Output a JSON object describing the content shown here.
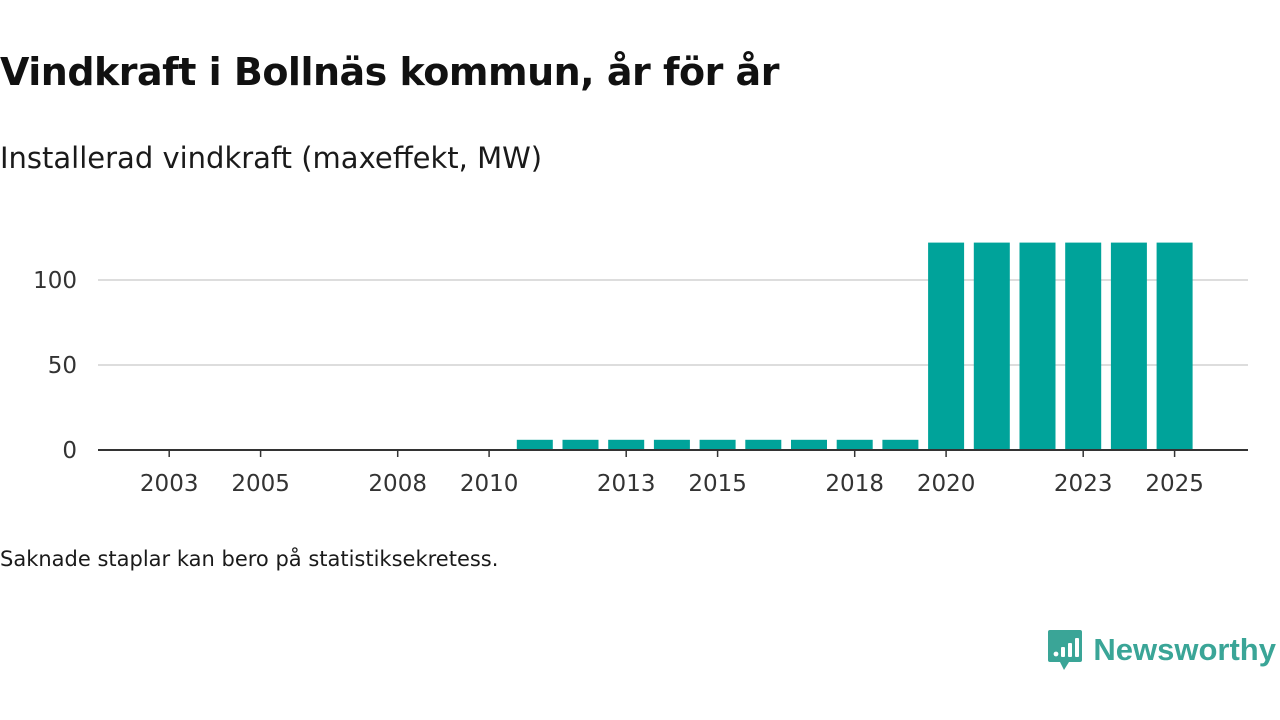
{
  "header": {
    "title": "Vindkraft i Bollnäs kommun, år för år",
    "subtitle": "Installerad vindkraft (maxeffekt, MW)"
  },
  "footnote": "Saknade staplar kan bero på statistiksekretess.",
  "brand": {
    "name": "Newsworthy",
    "icon": "newsworthy-logo-icon",
    "color": "#3aa597"
  },
  "colors": {
    "bar": "#00a39a",
    "grid": "#dddddd",
    "axis": "#333333"
  },
  "chart_data": {
    "type": "bar",
    "title": "Vindkraft i Bollnäs kommun, år för år",
    "subtitle": "Installerad vindkraft (maxeffekt, MW)",
    "xlabel": "",
    "ylabel": "",
    "ylim": [
      0,
      128
    ],
    "yticks": [
      0,
      50,
      100
    ],
    "xticks": [
      2003,
      2005,
      2008,
      2010,
      2013,
      2015,
      2018,
      2020,
      2023,
      2025
    ],
    "grid": true,
    "categories": [
      2002,
      2003,
      2004,
      2005,
      2006,
      2007,
      2008,
      2009,
      2010,
      2011,
      2012,
      2013,
      2014,
      2015,
      2016,
      2017,
      2018,
      2019,
      2020,
      2021,
      2022,
      2023,
      2024,
      2025
    ],
    "values": [
      0,
      0,
      0,
      0,
      0,
      0,
      0,
      0,
      0,
      6,
      6,
      6,
      6,
      6,
      6,
      6,
      6,
      6,
      122,
      122,
      122,
      122,
      122,
      122
    ]
  }
}
